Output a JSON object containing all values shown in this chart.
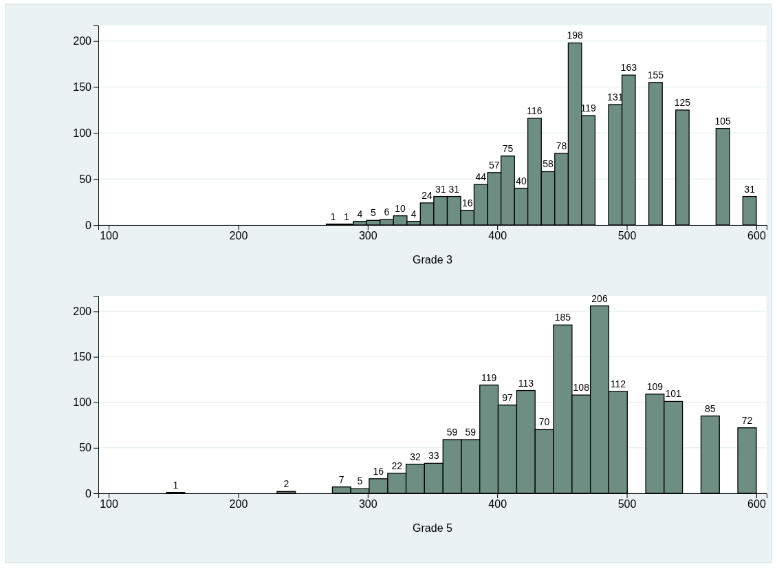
{
  "chart_data": [
    {
      "type": "histogram",
      "xlabel": "Grade 3",
      "color": "#6e8e84",
      "bins": [
        268,
        278.4,
        288.8,
        299.1,
        309.5,
        319.9,
        330.3,
        340.6,
        351,
        361.4,
        371.8,
        382.1,
        392.5,
        402.9,
        413.3,
        423.6,
        434,
        444.4,
        454.8,
        465.1,
        475.5,
        485.9,
        496.3,
        506.6,
        517,
        527.4,
        537.8,
        548.1,
        558.5,
        568.9,
        579.3,
        589.6,
        600
      ],
      "values": [
        1,
        1,
        4,
        5,
        6,
        10,
        4,
        24,
        31,
        31,
        16,
        44,
        57,
        75,
        40,
        116,
        58,
        78,
        198,
        119,
        0,
        131,
        163,
        0,
        155,
        0,
        125,
        0,
        0,
        105,
        0,
        31
      ],
      "value_labels": [
        "1",
        "1",
        "4",
        "5",
        "6",
        "10",
        "4",
        "24",
        "31",
        "31",
        "16",
        "44",
        "57",
        "75",
        "40",
        "116",
        "58",
        "78",
        "198",
        "119",
        null,
        "131",
        "163",
        null,
        "155",
        null,
        "125",
        null,
        null,
        "105",
        null,
        "31"
      ],
      "xlim": [
        92,
        608
      ],
      "xticks": [
        100,
        200,
        300,
        400,
        500,
        600
      ],
      "ylim": [
        0,
        217
      ],
      "yticks": [
        0,
        50,
        100,
        150,
        200
      ],
      "grid": "y"
    },
    {
      "type": "histogram",
      "xlabel": "Grade 5",
      "color": "#6e8e84",
      "bins": [
        144.6,
        158.8,
        173.1,
        187.3,
        201.5,
        215.8,
        230,
        244.2,
        258.4,
        272.7,
        286.9,
        301.1,
        315.4,
        329.6,
        343.8,
        358.1,
        372.3,
        386.5,
        400.7,
        415,
        429.2,
        443.4,
        457.7,
        471.9,
        486.1,
        500.4,
        514.6,
        528.8,
        543,
        557.3,
        571.5,
        585.7,
        600
      ],
      "values": [
        1,
        0,
        0,
        0,
        0,
        0,
        2,
        0,
        0,
        7,
        5,
        16,
        22,
        32,
        33,
        59,
        59,
        119,
        97,
        113,
        70,
        185,
        108,
        206,
        112,
        0,
        109,
        101,
        0,
        85,
        0,
        72
      ],
      "value_labels": [
        "1",
        null,
        null,
        null,
        null,
        null,
        "2",
        null,
        null,
        "7",
        "5",
        "16",
        "22",
        "32",
        "33",
        "59",
        "59",
        "119",
        "97",
        "113",
        "70",
        "185",
        "108",
        "206",
        "112",
        null,
        "109",
        "101",
        null,
        "85",
        null,
        "72"
      ],
      "xlim": [
        92,
        608
      ],
      "xticks": [
        100,
        200,
        300,
        400,
        500,
        600
      ],
      "ylim": [
        0,
        217
      ],
      "yticks": [
        0,
        50,
        100,
        150,
        200
      ],
      "grid": "y"
    }
  ]
}
